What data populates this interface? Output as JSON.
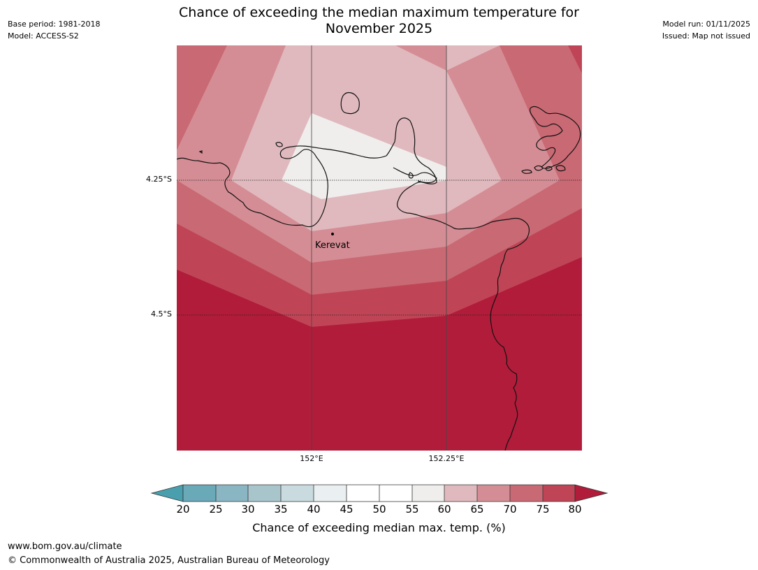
{
  "header": {
    "title_line1": "Chance of exceeding the median maximum temperature for",
    "title_line2": "November 2025",
    "base_period": "Base period: 1981-2018",
    "model": "Model: ACCESS-S2",
    "model_run": "Model run: 01/11/2025",
    "issued": "Issued: Map not issued"
  },
  "map": {
    "latitude_labels": [
      "4.25°S",
      "4.5°S"
    ],
    "longitude_labels": [
      "152°E",
      "152.25°E"
    ],
    "place_label": "Kerevat",
    "gridlines": true
  },
  "colorbar": {
    "ticks": [
      "20",
      "25",
      "30",
      "35",
      "40",
      "45",
      "50",
      "55",
      "60",
      "65",
      "70",
      "75",
      "80"
    ],
    "label": "Chance of exceeding median max. temp. (%)",
    "colors": {
      "below_20": "#4a9fae",
      "20_25": "#6aa9b8",
      "25_30": "#8ab6c4",
      "30_35": "#a8c5cc",
      "35_40": "#c9dbde",
      "40_45": "#eaf0f1",
      "45_50": "#ffffff",
      "50_55": "#ffffff",
      "55_60": "#efeeec",
      "60_65": "#e0b9be",
      "65_70": "#d58d95",
      "70_75": "#c96974",
      "75_80": "#bf4556",
      "above_80": "#b11c3a"
    }
  },
  "footer": {
    "url": "www.bom.gov.au/climate",
    "copyright": "© Commonwealth of Australia 2025, Australian Bureau of Meteorology"
  }
}
